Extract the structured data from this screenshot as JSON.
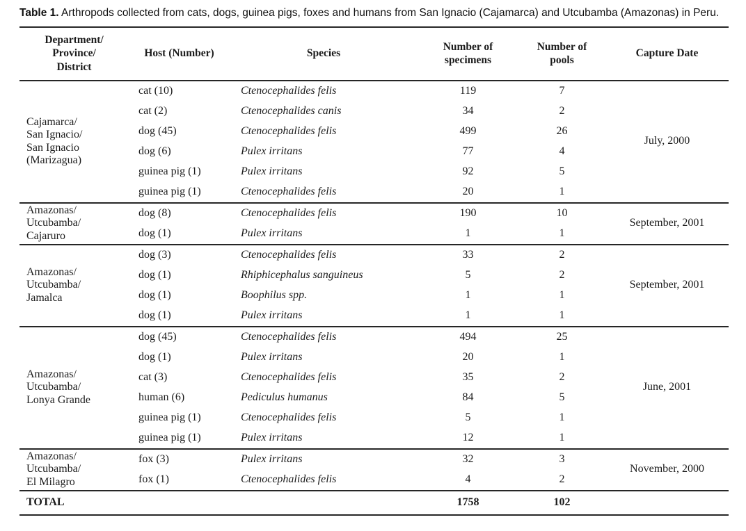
{
  "caption": {
    "label": "Table 1.",
    "text": " Arthropods collected from cats, dogs, guinea pigs, foxes and humans from San Ignacio (Cajamarca) and Utcubamba (Amazonas) in Peru."
  },
  "table": {
    "headers": [
      "Department/\nProvince/\nDistrict",
      "Host (Number)",
      "Species",
      "Number of\nspecimens",
      "Number of\npools",
      "Capture Date"
    ],
    "groups": [
      {
        "location": "Cajamarca/\nSan Ignacio/\nSan Ignacio\n(Marizagua)",
        "capture_date": "July, 2000",
        "rows": [
          {
            "host": "cat (10)",
            "species": "Ctenocephalides felis",
            "specimens": "119",
            "pools": "7"
          },
          {
            "host": "cat (2)",
            "species": "Ctenocephalides canis",
            "specimens": "34",
            "pools": "2"
          },
          {
            "host": "dog (45)",
            "species": "Ctenocephalides felis",
            "specimens": "499",
            "pools": "26"
          },
          {
            "host": "dog (6)",
            "species": "Pulex irritans",
            "specimens": "77",
            "pools": "4"
          },
          {
            "host": "guinea pig (1)",
            "species": "Pulex irritans",
            "specimens": "92",
            "pools": "5"
          },
          {
            "host": "guinea pig (1)",
            "species": "Ctenocephalides felis",
            "specimens": "20",
            "pools": "1"
          }
        ]
      },
      {
        "location": "Amazonas/\nUtcubamba/\nCajaruro",
        "capture_date": "September, 2001",
        "rows": [
          {
            "host": "dog (8)",
            "species": "Ctenocephalides felis",
            "specimens": "190",
            "pools": "10"
          },
          {
            "host": "dog (1)",
            "species": "Pulex irritans",
            "specimens": "1",
            "pools": "1"
          }
        ]
      },
      {
        "location": "Amazonas/\nUtcubamba/\nJamalca",
        "capture_date": "September, 2001",
        "rows": [
          {
            "host": "dog (3)",
            "species": "Ctenocephalides felis",
            "specimens": "33",
            "pools": "2"
          },
          {
            "host": "dog (1)",
            "species": "Rhiphicephalus sanguineus",
            "specimens": "5",
            "pools": "2"
          },
          {
            "host": "dog (1)",
            "species": "Boophilus spp.",
            "specimens": "1",
            "pools": "1"
          },
          {
            "host": "dog (1)",
            "species": "Pulex irritans",
            "specimens": "1",
            "pools": "1"
          }
        ]
      },
      {
        "location": "Amazonas/\nUtcubamba/\nLonya Grande",
        "capture_date": "June, 2001",
        "rows": [
          {
            "host": "dog (45)",
            "species": "Ctenocephalides felis",
            "specimens": "494",
            "pools": "25"
          },
          {
            "host": "dog (1)",
            "species": "Pulex irritans",
            "specimens": "20",
            "pools": "1"
          },
          {
            "host": "cat (3)",
            "species": "Ctenocephalides felis",
            "specimens": "35",
            "pools": "2"
          },
          {
            "host": "human (6)",
            "species": "Pediculus humanus",
            "specimens": "84",
            "pools": "5"
          },
          {
            "host": "guinea pig (1)",
            "species": "Ctenocephalides felis",
            "specimens": "5",
            "pools": "1"
          },
          {
            "host": "guinea pig (1)",
            "species": "Pulex irritans",
            "specimens": "12",
            "pools": "1"
          }
        ]
      },
      {
        "location": "Amazonas/\nUtcubamba/\nEl Milagro",
        "capture_date": "November, 2000",
        "rows": [
          {
            "host": "fox (3)",
            "species": "Pulex irritans",
            "specimens": "32",
            "pools": "3"
          },
          {
            "host": "fox (1)",
            "species": "Ctenocephalides felis",
            "specimens": "4",
            "pools": "2"
          }
        ]
      }
    ],
    "total": {
      "label": "TOTAL",
      "specimens": "1758",
      "pools": "102"
    }
  }
}
